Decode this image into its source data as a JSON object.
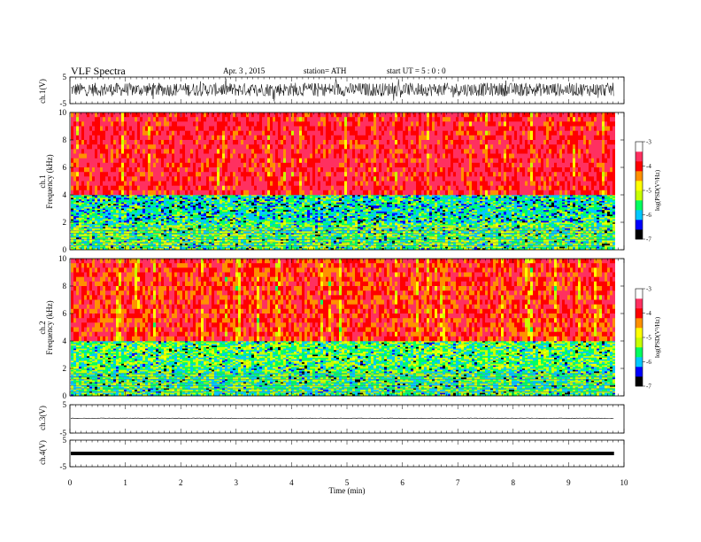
{
  "header": {
    "title": "VLF  Spectra",
    "date": "Apr. 3  , 2015",
    "station": "station= ATH",
    "start": "start  UT  =   5  : 0  : 0"
  },
  "x_axis": {
    "label": "Time  (min)",
    "ticks": [
      "0",
      "1",
      "2",
      "3",
      "4",
      "5",
      "6",
      "7",
      "8",
      "9",
      "10"
    ],
    "range": [
      0,
      10
    ],
    "data_end": 9.82
  },
  "panels": {
    "ch1_wave": {
      "label": "ch.1(V)",
      "ticks": [
        "5",
        "-5"
      ]
    },
    "ch1_spec": {
      "label_ch": "ch.1",
      "label_freq": "Frequency  (kHz)",
      "ticks": [
        "10",
        "8",
        "6",
        "4",
        "2",
        "0"
      ]
    },
    "ch2_spec": {
      "label_ch": "ch.2",
      "label_freq": "Frequency  (kHz)",
      "ticks": [
        "10",
        "8",
        "6",
        "4",
        "2",
        "0"
      ]
    },
    "ch3_wave": {
      "label": "ch.3(V)",
      "ticks": [
        "5",
        "-5"
      ]
    },
    "ch4_wave": {
      "label": "ch.4(V)",
      "ticks": [
        "5",
        "-5"
      ]
    }
  },
  "colorbar": {
    "label": "log(PSD(V²/Hz)",
    "ticks": [
      "-3",
      "-4",
      "-5",
      "-6",
      "-7"
    ],
    "range": [
      -7,
      -3
    ],
    "stops": [
      "#000000",
      "#0000ff",
      "#00c8ff",
      "#00ff60",
      "#c8ff00",
      "#ffff00",
      "#ff9000",
      "#ff0000",
      "#ff3060",
      "#ffffff"
    ]
  },
  "chart_data": [
    {
      "type": "line",
      "title": "VLF  Spectra",
      "xlabel": "Time  (min)",
      "ylabel": "ch.1(V)",
      "xlim": [
        0,
        10
      ],
      "ylim": [
        -5,
        5
      ],
      "series": [
        {
          "x_range": [
            0,
            9.82
          ],
          "mean": 0.3,
          "amplitude": 2.5
        }
      ]
    },
    {
      "type": "heatmap",
      "ylabel": "Frequency  (kHz)",
      "xlim": [
        0,
        10
      ],
      "ylim": [
        0,
        10
      ],
      "colorbar_range": [
        -7,
        -3
      ],
      "bands": [
        {
          "freq_khz": [
            0,
            2
          ],
          "log_psd": -5.3
        },
        {
          "freq_khz": [
            2,
            4
          ],
          "log_psd": -5.6
        },
        {
          "freq_khz": [
            4,
            10
          ],
          "log_psd": -3.4
        }
      ]
    },
    {
      "type": "heatmap",
      "ylabel": "Frequency  (kHz)",
      "xlim": [
        0,
        10
      ],
      "ylim": [
        0,
        10
      ],
      "colorbar_range": [
        -7,
        -3
      ],
      "bands": [
        {
          "freq_khz": [
            0,
            2
          ],
          "log_psd": -5.4
        },
        {
          "freq_khz": [
            2,
            4
          ],
          "log_psd": -5.3
        },
        {
          "freq_khz": [
            4,
            10
          ],
          "log_psd": -3.6
        }
      ]
    },
    {
      "type": "line",
      "ylabel": "ch.3(V)",
      "xlim": [
        0,
        10
      ],
      "ylim": [
        -5,
        5
      ],
      "series": [
        {
          "x_range": [
            0,
            9.82
          ],
          "mean": 0.2,
          "amplitude": 0.1
        }
      ]
    },
    {
      "type": "line",
      "ylabel": "ch.4(V)",
      "xlim": [
        0,
        10
      ],
      "ylim": [
        -5,
        5
      ],
      "series": [
        {
          "x_range": [
            0,
            9.82
          ],
          "mean": 0.0,
          "amplitude": 0.3
        }
      ]
    }
  ]
}
